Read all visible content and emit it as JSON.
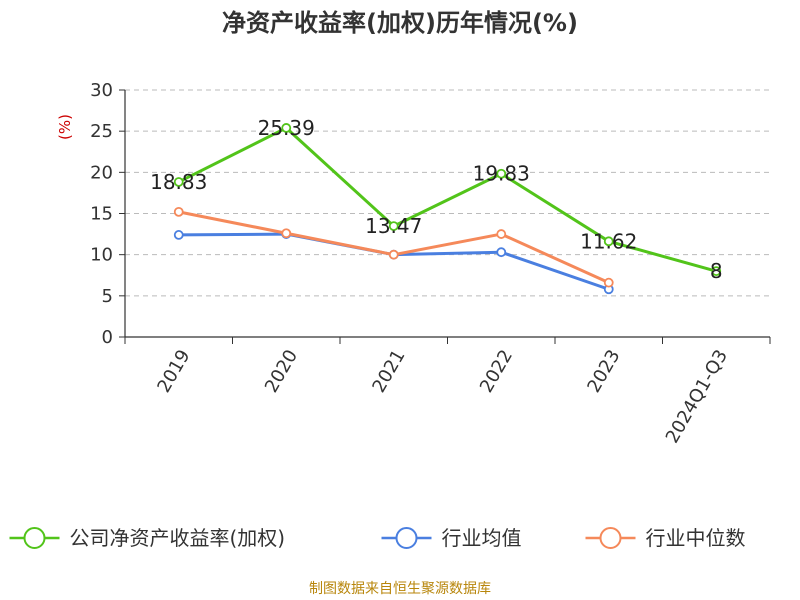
{
  "chart_data": {
    "type": "line",
    "title": "净资产收益率(加权)历年情况(%)",
    "ylabel": "(%)",
    "categories": [
      "2019",
      "2020",
      "2021",
      "2022",
      "2023",
      "2024Q1-Q3"
    ],
    "ylim": [
      0,
      30
    ],
    "yticks": [
      "0",
      "5",
      "10",
      "15",
      "20",
      "25",
      "30"
    ],
    "grid": true,
    "legend_position": "bottom",
    "series": [
      {
        "name": "公司净资产收益率(加权)",
        "color": "#52c41a",
        "values": [
          18.83,
          25.39,
          13.47,
          19.83,
          11.62,
          8
        ],
        "labels": [
          "18.83",
          "25.39",
          "13.47",
          "19.83",
          "11.62",
          "8"
        ]
      },
      {
        "name": "行业均值",
        "color": "#4a7fe0",
        "values": [
          12.4,
          12.5,
          10.0,
          10.3,
          5.8,
          null
        ]
      },
      {
        "name": "行业中位数",
        "color": "#f5895a",
        "values": [
          15.2,
          12.6,
          10.0,
          12.5,
          6.6,
          null
        ]
      }
    ],
    "source": "制图数据来自恒生聚源数据库"
  }
}
